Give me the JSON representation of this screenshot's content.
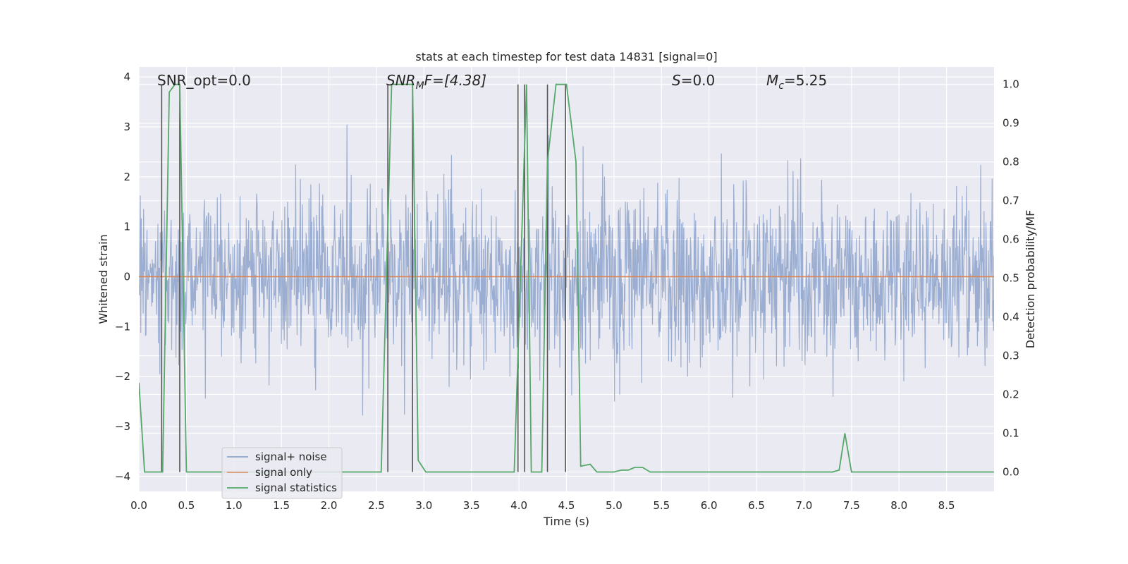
{
  "chart_data": {
    "type": "line",
    "title": "stats at each timestep for test data 14831 [signal=0]",
    "xlabel": "Time (s)",
    "ylabel": "Whitened strain",
    "y2label": "Detection probability/MF",
    "xlim": [
      0,
      9.0
    ],
    "ylim": [
      -4.3,
      4.2
    ],
    "y2lim": [
      -0.05,
      1.045
    ],
    "xticks": [
      0.0,
      0.5,
      1.0,
      1.5,
      2.0,
      2.5,
      3.0,
      3.5,
      4.0,
      4.5,
      5.0,
      5.5,
      6.0,
      6.5,
      7.0,
      7.5,
      8.0,
      8.5
    ],
    "xtick_labels": [
      "0.0",
      "0.5",
      "1.0",
      "1.5",
      "2.0",
      "2.5",
      "3.0",
      "3.5",
      "4.0",
      "4.5",
      "5.0",
      "5.5",
      "6.0",
      "6.5",
      "7.0",
      "7.5",
      "8.0",
      "8.5"
    ],
    "yticks": [
      -4,
      -3,
      -2,
      -1,
      0,
      1,
      2,
      3,
      4
    ],
    "ytick_labels": [
      "−4",
      "−3",
      "−2",
      "−1",
      "0",
      "1",
      "2",
      "3",
      "4"
    ],
    "y2ticks": [
      0.0,
      0.1,
      0.2,
      0.3,
      0.4,
      0.5,
      0.6,
      0.7,
      0.8,
      0.9,
      1.0
    ],
    "y2tick_labels": [
      "0.0",
      "0.1",
      "0.2",
      "0.3",
      "0.4",
      "0.5",
      "0.6",
      "0.7",
      "0.8",
      "0.9",
      "1.0"
    ],
    "grid": true,
    "legend_position": "lower-left",
    "colors": {
      "signal_noise": "#4c72b0",
      "signal_only": "#dd8452",
      "statistics": "#55a868",
      "event_lines": "#555555",
      "axes_bg": "#eaeaf2",
      "grid": "#ffffff"
    },
    "annotations": [
      {
        "id": "snr-opt",
        "text": "SNR_opt=0.0"
      },
      {
        "id": "snr-mf",
        "main": "SNR",
        "sub": "M",
        "suffix": "F=[4.38]"
      },
      {
        "id": "s-value",
        "main": "S",
        "suffix": "=0.0"
      },
      {
        "id": "mc-value",
        "main": "M",
        "sub": "c",
        "suffix": "=5.25"
      }
    ],
    "series": [
      {
        "name": "signal+ noise",
        "axis": "left",
        "kind": "noise",
        "seed": 14831,
        "dt": 0.005,
        "std": 0.85
      },
      {
        "name": "signal only",
        "axis": "left",
        "x": [
          0.0,
          9.0
        ],
        "y": [
          0.0,
          0.0
        ]
      },
      {
        "name": "signal statistics",
        "axis": "right",
        "x": [
          0.0,
          0.06,
          0.12,
          0.25,
          0.32,
          0.38,
          0.43,
          0.5,
          0.56,
          2.55,
          2.66,
          2.72,
          2.88,
          2.94,
          3.02,
          3.95,
          4.08,
          4.13,
          4.24,
          4.3,
          4.39,
          4.5,
          4.6,
          4.65,
          4.75,
          4.82,
          5.0,
          5.08,
          5.15,
          5.22,
          5.3,
          5.38,
          7.3,
          7.37,
          7.43,
          7.5,
          9.0
        ],
        "y": [
          0.23,
          0.0,
          0.0,
          0.0,
          0.98,
          1.0,
          1.0,
          0.0,
          0.0,
          0.0,
          1.0,
          1.0,
          1.0,
          0.03,
          0.0,
          0.0,
          1.0,
          0.0,
          0.0,
          0.8,
          1.0,
          1.0,
          0.8,
          0.015,
          0.02,
          0.0,
          0.0,
          0.005,
          0.005,
          0.012,
          0.012,
          0.0,
          0.0,
          0.005,
          0.1,
          0.0,
          0.0
        ]
      }
    ],
    "event_lines_x": [
      0.24,
      0.43,
      2.62,
      2.88,
      3.99,
      4.06,
      4.3,
      4.49
    ],
    "event_lines_range": [
      0.0,
      1.0
    ]
  }
}
